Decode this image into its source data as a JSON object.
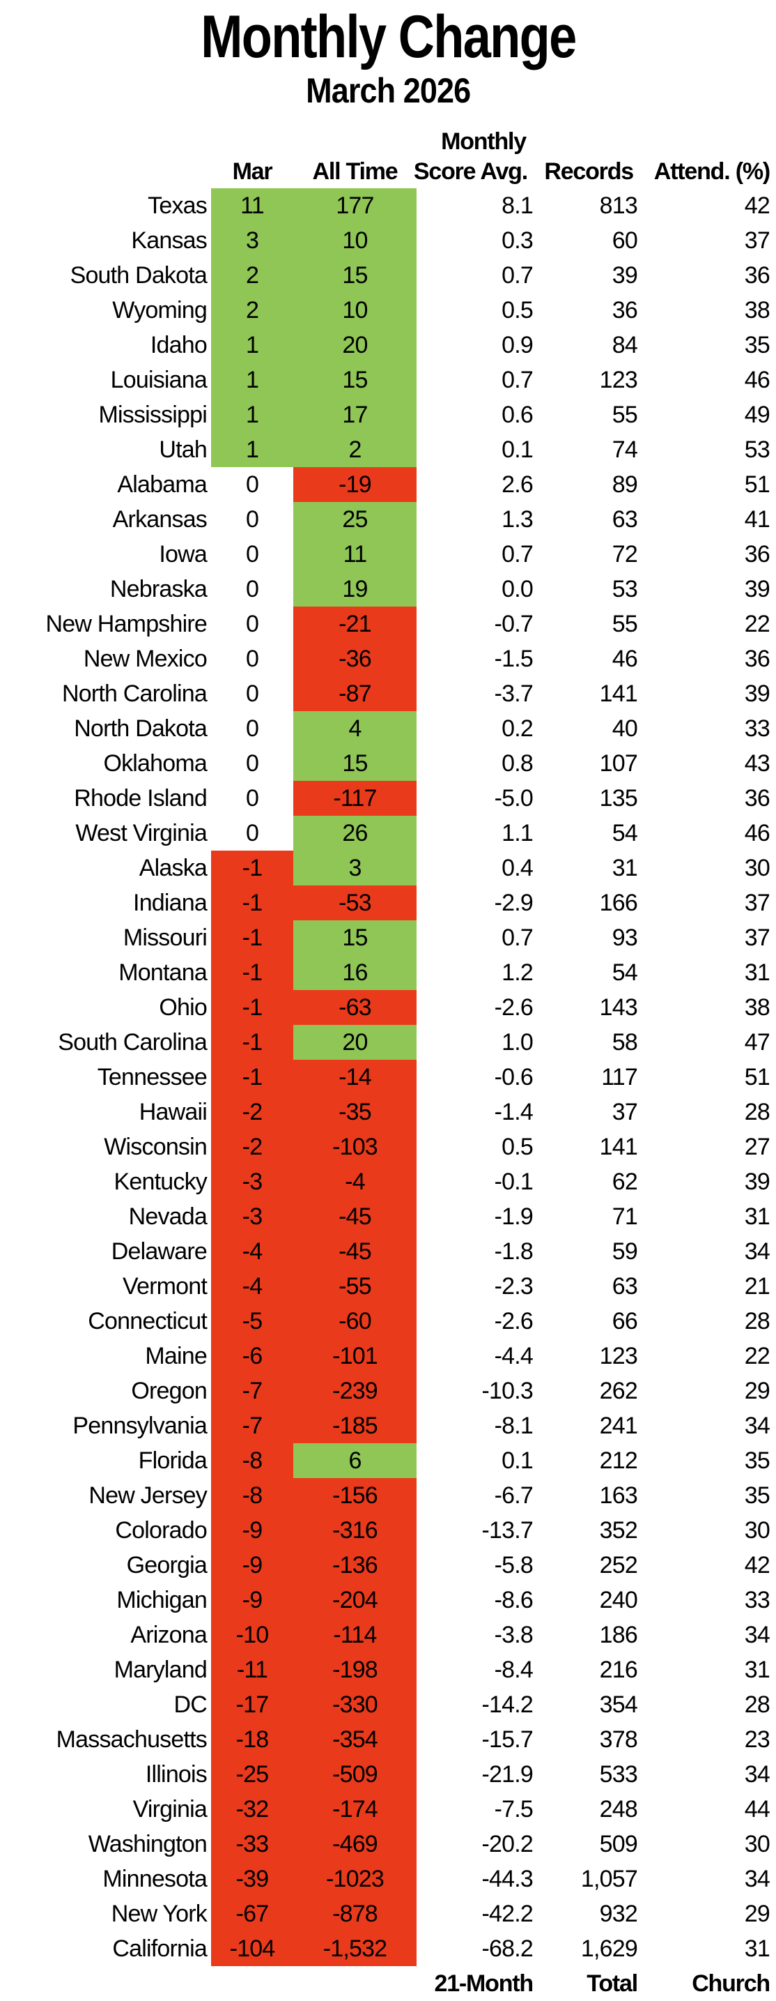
{
  "title": "Monthly Change",
  "subtitle": "March 2026",
  "table": {
    "group_header": "Monthly",
    "columns": {
      "state": "",
      "mar": "Mar",
      "all_time": "All Time",
      "score_avg": "Score Avg.",
      "records": "Records",
      "attend": "Attend. (%)"
    },
    "footer": {
      "score_avg": "21-Month",
      "records": "Total",
      "attend": "Church"
    }
  },
  "colors": {
    "positive_bg": "#8FC656",
    "negative_bg": "#EA3A1C",
    "background": "#FFFFFF",
    "text": "#000000"
  },
  "chart_data": {
    "type": "table",
    "title": "Monthly Change",
    "subtitle": "March 2026",
    "columns": [
      "State",
      "Mar",
      "All Time",
      "Monthly Score Avg.",
      "Records",
      "Attend. (%)"
    ],
    "column_footers": [
      "",
      "",
      "",
      "21-Month",
      "Total",
      "Church"
    ],
    "color_rule": "Mar and All Time cells: green when value > 0, red when value < 0, white when value = 0",
    "rows": [
      {
        "state": "Texas",
        "mar": "11",
        "all_time": "177",
        "score_avg": "8.1",
        "records": "813",
        "attend": "42"
      },
      {
        "state": "Kansas",
        "mar": "3",
        "all_time": "10",
        "score_avg": "0.3",
        "records": "60",
        "attend": "37"
      },
      {
        "state": "South Dakota",
        "mar": "2",
        "all_time": "15",
        "score_avg": "0.7",
        "records": "39",
        "attend": "36"
      },
      {
        "state": "Wyoming",
        "mar": "2",
        "all_time": "10",
        "score_avg": "0.5",
        "records": "36",
        "attend": "38"
      },
      {
        "state": "Idaho",
        "mar": "1",
        "all_time": "20",
        "score_avg": "0.9",
        "records": "84",
        "attend": "35"
      },
      {
        "state": "Louisiana",
        "mar": "1",
        "all_time": "15",
        "score_avg": "0.7",
        "records": "123",
        "attend": "46"
      },
      {
        "state": "Mississippi",
        "mar": "1",
        "all_time": "17",
        "score_avg": "0.6",
        "records": "55",
        "attend": "49"
      },
      {
        "state": "Utah",
        "mar": "1",
        "all_time": "2",
        "score_avg": "0.1",
        "records": "74",
        "attend": "53"
      },
      {
        "state": "Alabama",
        "mar": "0",
        "all_time": "-19",
        "score_avg": "2.6",
        "records": "89",
        "attend": "51"
      },
      {
        "state": "Arkansas",
        "mar": "0",
        "all_time": "25",
        "score_avg": "1.3",
        "records": "63",
        "attend": "41"
      },
      {
        "state": "Iowa",
        "mar": "0",
        "all_time": "11",
        "score_avg": "0.7",
        "records": "72",
        "attend": "36"
      },
      {
        "state": "Nebraska",
        "mar": "0",
        "all_time": "19",
        "score_avg": "0.0",
        "records": "53",
        "attend": "39"
      },
      {
        "state": "New Hampshire",
        "mar": "0",
        "all_time": "-21",
        "score_avg": "-0.7",
        "records": "55",
        "attend": "22"
      },
      {
        "state": "New Mexico",
        "mar": "0",
        "all_time": "-36",
        "score_avg": "-1.5",
        "records": "46",
        "attend": "36"
      },
      {
        "state": "North Carolina",
        "mar": "0",
        "all_time": "-87",
        "score_avg": "-3.7",
        "records": "141",
        "attend": "39"
      },
      {
        "state": "North Dakota",
        "mar": "0",
        "all_time": "4",
        "score_avg": "0.2",
        "records": "40",
        "attend": "33"
      },
      {
        "state": "Oklahoma",
        "mar": "0",
        "all_time": "15",
        "score_avg": "0.8",
        "records": "107",
        "attend": "43"
      },
      {
        "state": "Rhode Island",
        "mar": "0",
        "all_time": "-117",
        "score_avg": "-5.0",
        "records": "135",
        "attend": "36"
      },
      {
        "state": "West Virginia",
        "mar": "0",
        "all_time": "26",
        "score_avg": "1.1",
        "records": "54",
        "attend": "46"
      },
      {
        "state": "Alaska",
        "mar": "-1",
        "all_time": "3",
        "score_avg": "0.4",
        "records": "31",
        "attend": "30"
      },
      {
        "state": "Indiana",
        "mar": "-1",
        "all_time": "-53",
        "score_avg": "-2.9",
        "records": "166",
        "attend": "37"
      },
      {
        "state": "Missouri",
        "mar": "-1",
        "all_time": "15",
        "score_avg": "0.7",
        "records": "93",
        "attend": "37"
      },
      {
        "state": "Montana",
        "mar": "-1",
        "all_time": "16",
        "score_avg": "1.2",
        "records": "54",
        "attend": "31"
      },
      {
        "state": "Ohio",
        "mar": "-1",
        "all_time": "-63",
        "score_avg": "-2.6",
        "records": "143",
        "attend": "38"
      },
      {
        "state": "South Carolina",
        "mar": "-1",
        "all_time": "20",
        "score_avg": "1.0",
        "records": "58",
        "attend": "47"
      },
      {
        "state": "Tennessee",
        "mar": "-1",
        "all_time": "-14",
        "score_avg": "-0.6",
        "records": "117",
        "attend": "51"
      },
      {
        "state": "Hawaii",
        "mar": "-2",
        "all_time": "-35",
        "score_avg": "-1.4",
        "records": "37",
        "attend": "28"
      },
      {
        "state": "Wisconsin",
        "mar": "-2",
        "all_time": "-103",
        "score_avg": "0.5",
        "records": "141",
        "attend": "27"
      },
      {
        "state": "Kentucky",
        "mar": "-3",
        "all_time": "-4",
        "score_avg": "-0.1",
        "records": "62",
        "attend": "39"
      },
      {
        "state": "Nevada",
        "mar": "-3",
        "all_time": "-45",
        "score_avg": "-1.9",
        "records": "71",
        "attend": "31"
      },
      {
        "state": "Delaware",
        "mar": "-4",
        "all_time": "-45",
        "score_avg": "-1.8",
        "records": "59",
        "attend": "34"
      },
      {
        "state": "Vermont",
        "mar": "-4",
        "all_time": "-55",
        "score_avg": "-2.3",
        "records": "63",
        "attend": "21"
      },
      {
        "state": "Connecticut",
        "mar": "-5",
        "all_time": "-60",
        "score_avg": "-2.6",
        "records": "66",
        "attend": "28"
      },
      {
        "state": "Maine",
        "mar": "-6",
        "all_time": "-101",
        "score_avg": "-4.4",
        "records": "123",
        "attend": "22"
      },
      {
        "state": "Oregon",
        "mar": "-7",
        "all_time": "-239",
        "score_avg": "-10.3",
        "records": "262",
        "attend": "29"
      },
      {
        "state": "Pennsylvania",
        "mar": "-7",
        "all_time": "-185",
        "score_avg": "-8.1",
        "records": "241",
        "attend": "34"
      },
      {
        "state": "Florida",
        "mar": "-8",
        "all_time": "6",
        "score_avg": "0.1",
        "records": "212",
        "attend": "35"
      },
      {
        "state": "New Jersey",
        "mar": "-8",
        "all_time": "-156",
        "score_avg": "-6.7",
        "records": "163",
        "attend": "35"
      },
      {
        "state": "Colorado",
        "mar": "-9",
        "all_time": "-316",
        "score_avg": "-13.7",
        "records": "352",
        "attend": "30"
      },
      {
        "state": "Georgia",
        "mar": "-9",
        "all_time": "-136",
        "score_avg": "-5.8",
        "records": "252",
        "attend": "42"
      },
      {
        "state": "Michigan",
        "mar": "-9",
        "all_time": "-204",
        "score_avg": "-8.6",
        "records": "240",
        "attend": "33"
      },
      {
        "state": "Arizona",
        "mar": "-10",
        "all_time": "-114",
        "score_avg": "-3.8",
        "records": "186",
        "attend": "34"
      },
      {
        "state": "Maryland",
        "mar": "-11",
        "all_time": "-198",
        "score_avg": "-8.4",
        "records": "216",
        "attend": "31"
      },
      {
        "state": "DC",
        "mar": "-17",
        "all_time": "-330",
        "score_avg": "-14.2",
        "records": "354",
        "attend": "28"
      },
      {
        "state": "Massachusetts",
        "mar": "-18",
        "all_time": "-354",
        "score_avg": "-15.7",
        "records": "378",
        "attend": "23"
      },
      {
        "state": "Illinois",
        "mar": "-25",
        "all_time": "-509",
        "score_avg": "-21.9",
        "records": "533",
        "attend": "34"
      },
      {
        "state": "Virginia",
        "mar": "-32",
        "all_time": "-174",
        "score_avg": "-7.5",
        "records": "248",
        "attend": "44"
      },
      {
        "state": "Washington",
        "mar": "-33",
        "all_time": "-469",
        "score_avg": "-20.2",
        "records": "509",
        "attend": "30"
      },
      {
        "state": "Minnesota",
        "mar": "-39",
        "all_time": "-1023",
        "score_avg": "-44.3",
        "records": "1,057",
        "attend": "34"
      },
      {
        "state": "New York",
        "mar": "-67",
        "all_time": "-878",
        "score_avg": "-42.2",
        "records": "932",
        "attend": "29"
      },
      {
        "state": "California",
        "mar": "-104",
        "all_time": "-1,532",
        "score_avg": "-68.2",
        "records": "1,629",
        "attend": "31"
      }
    ]
  }
}
